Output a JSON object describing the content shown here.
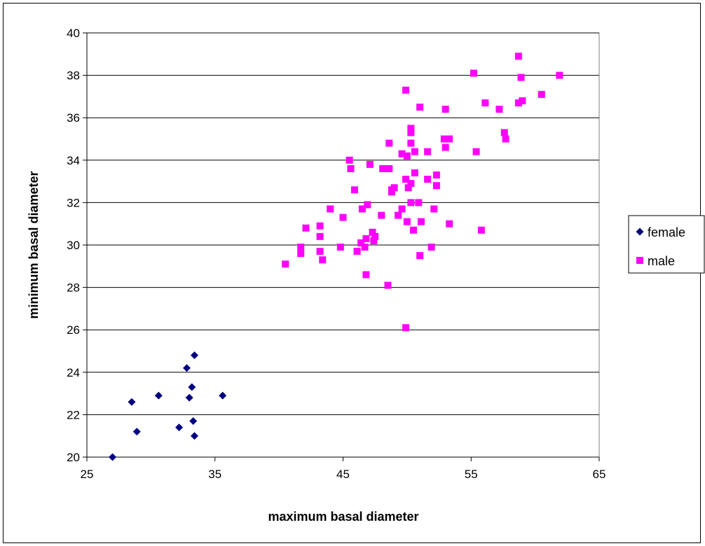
{
  "chart_data": {
    "type": "scatter",
    "title": "",
    "xlabel": "maximum basal diameter",
    "ylabel": "minimum basal diameter",
    "xlim": [
      25,
      65
    ],
    "ylim": [
      20,
      40
    ],
    "x_ticks": [
      25,
      35,
      45,
      55,
      65
    ],
    "y_ticks": [
      20,
      22,
      24,
      26,
      28,
      30,
      32,
      34,
      36,
      38,
      40
    ],
    "grid": "horizontal",
    "legend_position": "right",
    "series": [
      {
        "name": "female",
        "marker": "diamond",
        "color": "#00007f",
        "points": [
          [
            27.0,
            20.0
          ],
          [
            28.5,
            22.6
          ],
          [
            28.9,
            21.2
          ],
          [
            30.6,
            22.9
          ],
          [
            32.2,
            21.4
          ],
          [
            32.8,
            24.2
          ],
          [
            33.0,
            22.8
          ],
          [
            33.2,
            23.3
          ],
          [
            33.3,
            21.7
          ],
          [
            33.4,
            21.0
          ],
          [
            33.4,
            24.8
          ],
          [
            35.6,
            22.9
          ]
        ]
      },
      {
        "name": "male",
        "marker": "square",
        "color": "#ff00ff",
        "points": [
          [
            40.5,
            29.1
          ],
          [
            41.7,
            29.9
          ],
          [
            41.7,
            29.6
          ],
          [
            42.1,
            30.8
          ],
          [
            43.2,
            30.9
          ],
          [
            43.2,
            30.4
          ],
          [
            43.2,
            29.7
          ],
          [
            43.4,
            29.3
          ],
          [
            44.0,
            31.7
          ],
          [
            44.8,
            29.9
          ],
          [
            45.0,
            31.3
          ],
          [
            45.5,
            34.0
          ],
          [
            45.6,
            33.6
          ],
          [
            45.9,
            32.6
          ],
          [
            46.1,
            29.7
          ],
          [
            46.4,
            30.1
          ],
          [
            46.5,
            31.7
          ],
          [
            46.7,
            29.9
          ],
          [
            46.8,
            30.3
          ],
          [
            46.8,
            28.6
          ],
          [
            46.9,
            31.9
          ],
          [
            47.1,
            33.8
          ],
          [
            47.3,
            30.6
          ],
          [
            47.4,
            30.2
          ],
          [
            47.5,
            30.4
          ],
          [
            48.0,
            31.4
          ],
          [
            48.1,
            33.6
          ],
          [
            48.5,
            28.1
          ],
          [
            48.6,
            34.8
          ],
          [
            48.6,
            33.6
          ],
          [
            48.8,
            32.6
          ],
          [
            48.8,
            32.5
          ],
          [
            49.0,
            32.7
          ],
          [
            49.3,
            31.4
          ],
          [
            49.6,
            31.7
          ],
          [
            49.6,
            34.3
          ],
          [
            49.9,
            37.3
          ],
          [
            49.9,
            33.1
          ],
          [
            49.9,
            26.1
          ],
          [
            50.0,
            34.2
          ],
          [
            50.0,
            31.1
          ],
          [
            50.1,
            32.7
          ],
          [
            50.3,
            35.5
          ],
          [
            50.3,
            35.3
          ],
          [
            50.3,
            34.8
          ],
          [
            50.3,
            32.9
          ],
          [
            50.3,
            32.0
          ],
          [
            50.5,
            30.7
          ],
          [
            50.6,
            34.4
          ],
          [
            50.6,
            33.4
          ],
          [
            50.9,
            32.0
          ],
          [
            51.0,
            36.5
          ],
          [
            51.0,
            29.5
          ],
          [
            51.1,
            31.1
          ],
          [
            51.6,
            34.4
          ],
          [
            51.6,
            33.1
          ],
          [
            51.9,
            29.9
          ],
          [
            52.1,
            31.7
          ],
          [
            52.3,
            33.3
          ],
          [
            52.3,
            32.8
          ],
          [
            52.9,
            35.0
          ],
          [
            53.0,
            34.6
          ],
          [
            53.0,
            36.4
          ],
          [
            53.3,
            35.0
          ],
          [
            53.3,
            31.0
          ],
          [
            55.2,
            38.1
          ],
          [
            55.4,
            34.4
          ],
          [
            55.8,
            30.7
          ],
          [
            56.1,
            36.7
          ],
          [
            57.2,
            36.4
          ],
          [
            57.6,
            35.3
          ],
          [
            57.7,
            35.0
          ],
          [
            58.7,
            38.9
          ],
          [
            58.7,
            36.7
          ],
          [
            58.9,
            37.9
          ],
          [
            59.0,
            36.8
          ],
          [
            60.5,
            37.1
          ],
          [
            61.9,
            38.0
          ]
        ]
      }
    ]
  }
}
